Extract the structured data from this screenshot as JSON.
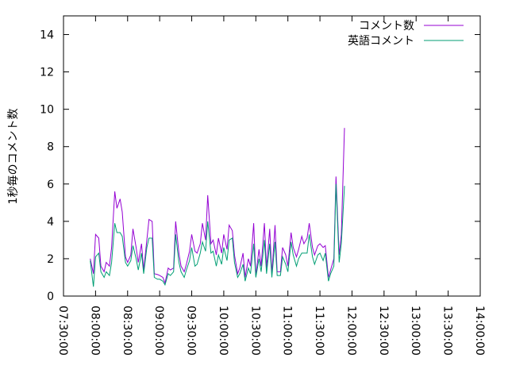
{
  "chart_data": {
    "type": "line",
    "title": "",
    "xlabel": "",
    "ylabel": "1秒毎のコメント数",
    "xlim": [
      "07:30:00",
      "14:00:00"
    ],
    "ylim": [
      0,
      15
    ],
    "grid": false,
    "legend_position": "top-right",
    "x_ticks": [
      "07:30:00",
      "08:00:00",
      "08:30:00",
      "09:00:00",
      "09:30:00",
      "10:00:00",
      "10:30:00",
      "11:00:00",
      "11:30:00",
      "12:00:00",
      "12:30:00",
      "13:00:00",
      "13:30:00",
      "14:00:00"
    ],
    "y_ticks": [
      0,
      2,
      4,
      6,
      8,
      10,
      12,
      14
    ],
    "series": [
      {
        "name": "コメント数",
        "color": "#9400d3",
        "points": [
          [
            "07:55:00",
            2.0
          ],
          [
            "07:58:00",
            1.2
          ],
          [
            "08:00:00",
            3.3
          ],
          [
            "08:03:00",
            3.1
          ],
          [
            "08:05:00",
            1.6
          ],
          [
            "08:08:00",
            1.3
          ],
          [
            "08:10:00",
            1.8
          ],
          [
            "08:13:00",
            1.6
          ],
          [
            "08:15:00",
            2.6
          ],
          [
            "08:18:00",
            5.6
          ],
          [
            "08:20:00",
            4.7
          ],
          [
            "08:23:00",
            5.2
          ],
          [
            "08:25:00",
            4.5
          ],
          [
            "08:28:00",
            2.1
          ],
          [
            "08:30:00",
            1.8
          ],
          [
            "08:33:00",
            2.2
          ],
          [
            "08:35:00",
            3.6
          ],
          [
            "08:38:00",
            2.6
          ],
          [
            "08:40:00",
            1.8
          ],
          [
            "08:43:00",
            2.8
          ],
          [
            "08:45:00",
            1.4
          ],
          [
            "08:48:00",
            3.0
          ],
          [
            "08:50:00",
            4.1
          ],
          [
            "08:53:00",
            4.0
          ],
          [
            "08:55:00",
            1.2
          ],
          [
            "08:58:00",
            1.15
          ],
          [
            "09:00:00",
            1.1
          ],
          [
            "09:03:00",
            1.0
          ],
          [
            "09:05:00",
            0.7
          ],
          [
            "09:08:00",
            1.5
          ],
          [
            "09:10:00",
            1.4
          ],
          [
            "09:13:00",
            1.5
          ],
          [
            "09:15:00",
            4.0
          ],
          [
            "09:18:00",
            2.3
          ],
          [
            "09:20:00",
            1.6
          ],
          [
            "09:23:00",
            1.3
          ],
          [
            "09:25:00",
            1.7
          ],
          [
            "09:28:00",
            2.4
          ],
          [
            "09:30:00",
            3.3
          ],
          [
            "09:33:00",
            2.4
          ],
          [
            "09:35:00",
            2.3
          ],
          [
            "09:38:00",
            2.8
          ],
          [
            "09:40:00",
            3.9
          ],
          [
            "09:43:00",
            3.0
          ],
          [
            "09:45:00",
            5.4
          ],
          [
            "09:48:00",
            2.8
          ],
          [
            "09:50:00",
            3.0
          ],
          [
            "09:53:00",
            2.2
          ],
          [
            "09:55:00",
            3.1
          ],
          [
            "09:58:00",
            2.3
          ],
          [
            "10:00:00",
            3.3
          ],
          [
            "10:03:00",
            2.5
          ],
          [
            "10:05:00",
            3.8
          ],
          [
            "10:08:00",
            3.5
          ],
          [
            "10:10:00",
            2.2
          ],
          [
            "10:13:00",
            1.2
          ],
          [
            "10:15:00",
            1.5
          ],
          [
            "10:18:00",
            2.3
          ],
          [
            "10:20:00",
            1.0
          ],
          [
            "10:23:00",
            2.0
          ],
          [
            "10:25:00",
            1.6
          ],
          [
            "10:28:00",
            3.9
          ],
          [
            "10:30:00",
            1.1
          ],
          [
            "10:33:00",
            2.5
          ],
          [
            "10:35:00",
            1.6
          ],
          [
            "10:38:00",
            3.9
          ],
          [
            "10:40:00",
            1.5
          ],
          [
            "10:43:00",
            3.6
          ],
          [
            "10:45:00",
            1.2
          ],
          [
            "10:48:00",
            3.8
          ],
          [
            "10:50:00",
            1.3
          ],
          [
            "10:53:00",
            1.3
          ],
          [
            "10:55:00",
            2.6
          ],
          [
            "10:58:00",
            2.2
          ],
          [
            "11:00:00",
            1.6
          ],
          [
            "11:03:00",
            3.4
          ],
          [
            "11:05:00",
            2.6
          ],
          [
            "11:08:00",
            2.1
          ],
          [
            "11:10:00",
            2.5
          ],
          [
            "11:13:00",
            3.2
          ],
          [
            "11:15:00",
            2.8
          ],
          [
            "11:18:00",
            3.1
          ],
          [
            "11:20:00",
            3.9
          ],
          [
            "11:23:00",
            2.6
          ],
          [
            "11:25:00",
            2.2
          ],
          [
            "11:28:00",
            2.7
          ],
          [
            "11:30:00",
            2.8
          ],
          [
            "11:33:00",
            2.6
          ],
          [
            "11:35:00",
            2.7
          ],
          [
            "11:38:00",
            1.0
          ],
          [
            "11:40:00",
            1.4
          ],
          [
            "11:43:00",
            2.0
          ],
          [
            "11:45:00",
            6.4
          ],
          [
            "11:48:00",
            2.2
          ],
          [
            "11:50:00",
            3.3
          ],
          [
            "11:53:00",
            9.0
          ]
        ]
      },
      {
        "name": "英語コメント",
        "color": "#009e73",
        "points": [
          [
            "07:55:00",
            1.9
          ],
          [
            "07:58:00",
            0.5
          ],
          [
            "08:00:00",
            2.1
          ],
          [
            "08:03:00",
            2.3
          ],
          [
            "08:05:00",
            1.3
          ],
          [
            "08:08:00",
            1.0
          ],
          [
            "08:10:00",
            1.3
          ],
          [
            "08:13:00",
            1.1
          ],
          [
            "08:15:00",
            1.8
          ],
          [
            "08:18:00",
            3.9
          ],
          [
            "08:20:00",
            3.4
          ],
          [
            "08:23:00",
            3.4
          ],
          [
            "08:25:00",
            3.2
          ],
          [
            "08:28:00",
            1.8
          ],
          [
            "08:30:00",
            1.6
          ],
          [
            "08:33:00",
            1.9
          ],
          [
            "08:35:00",
            2.7
          ],
          [
            "08:38:00",
            2.0
          ],
          [
            "08:40:00",
            1.4
          ],
          [
            "08:43:00",
            2.3
          ],
          [
            "08:45:00",
            1.2
          ],
          [
            "08:48:00",
            2.6
          ],
          [
            "08:50:00",
            3.1
          ],
          [
            "08:53:00",
            3.1
          ],
          [
            "08:55:00",
            1.0
          ],
          [
            "08:58:00",
            0.9
          ],
          [
            "09:00:00",
            0.9
          ],
          [
            "09:03:00",
            0.8
          ],
          [
            "09:05:00",
            0.6
          ],
          [
            "09:08:00",
            1.2
          ],
          [
            "09:10:00",
            1.1
          ],
          [
            "09:13:00",
            1.3
          ],
          [
            "09:15:00",
            3.3
          ],
          [
            "09:18:00",
            1.8
          ],
          [
            "09:20:00",
            1.3
          ],
          [
            "09:23:00",
            1.0
          ],
          [
            "09:25:00",
            1.4
          ],
          [
            "09:28:00",
            1.9
          ],
          [
            "09:30:00",
            2.6
          ],
          [
            "09:33:00",
            1.6
          ],
          [
            "09:35:00",
            1.7
          ],
          [
            "09:38:00",
            2.3
          ],
          [
            "09:40:00",
            2.9
          ],
          [
            "09:43:00",
            2.4
          ],
          [
            "09:45:00",
            4.0
          ],
          [
            "09:48:00",
            2.3
          ],
          [
            "09:50:00",
            2.4
          ],
          [
            "09:53:00",
            1.6
          ],
          [
            "09:55:00",
            2.2
          ],
          [
            "09:58:00",
            1.7
          ],
          [
            "10:00:00",
            2.6
          ],
          [
            "10:03:00",
            1.9
          ],
          [
            "10:05:00",
            3.0
          ],
          [
            "10:08:00",
            3.1
          ],
          [
            "10:10:00",
            1.8
          ],
          [
            "10:13:00",
            1.0
          ],
          [
            "10:15:00",
            1.2
          ],
          [
            "10:18:00",
            1.7
          ],
          [
            "10:20:00",
            0.8
          ],
          [
            "10:23:00",
            1.5
          ],
          [
            "10:25:00",
            1.2
          ],
          [
            "10:28:00",
            2.8
          ],
          [
            "10:30:00",
            1.0
          ],
          [
            "10:33:00",
            2.0
          ],
          [
            "10:35:00",
            1.3
          ],
          [
            "10:38:00",
            3.0
          ],
          [
            "10:40:00",
            1.2
          ],
          [
            "10:43:00",
            2.8
          ],
          [
            "10:45:00",
            1.0
          ],
          [
            "10:48:00",
            2.9
          ],
          [
            "10:50:00",
            1.1
          ],
          [
            "10:53:00",
            1.1
          ],
          [
            "10:55:00",
            2.1
          ],
          [
            "10:58:00",
            1.7
          ],
          [
            "11:00:00",
            1.3
          ],
          [
            "11:03:00",
            2.9
          ],
          [
            "11:05:00",
            2.2
          ],
          [
            "11:08:00",
            1.6
          ],
          [
            "11:10:00",
            2.0
          ],
          [
            "11:13:00",
            2.3
          ],
          [
            "11:15:00",
            2.3
          ],
          [
            "11:18:00",
            2.3
          ],
          [
            "11:20:00",
            3.3
          ],
          [
            "11:23:00",
            2.1
          ],
          [
            "11:25:00",
            1.7
          ],
          [
            "11:28:00",
            2.2
          ],
          [
            "11:30:00",
            2.3
          ],
          [
            "11:33:00",
            1.9
          ],
          [
            "11:35:00",
            2.3
          ],
          [
            "11:38:00",
            0.8
          ],
          [
            "11:40:00",
            1.2
          ],
          [
            "11:43:00",
            1.6
          ],
          [
            "11:45:00",
            6.0
          ],
          [
            "11:48:00",
            1.8
          ],
          [
            "11:50:00",
            2.8
          ],
          [
            "11:53:00",
            5.9
          ]
        ]
      }
    ]
  }
}
